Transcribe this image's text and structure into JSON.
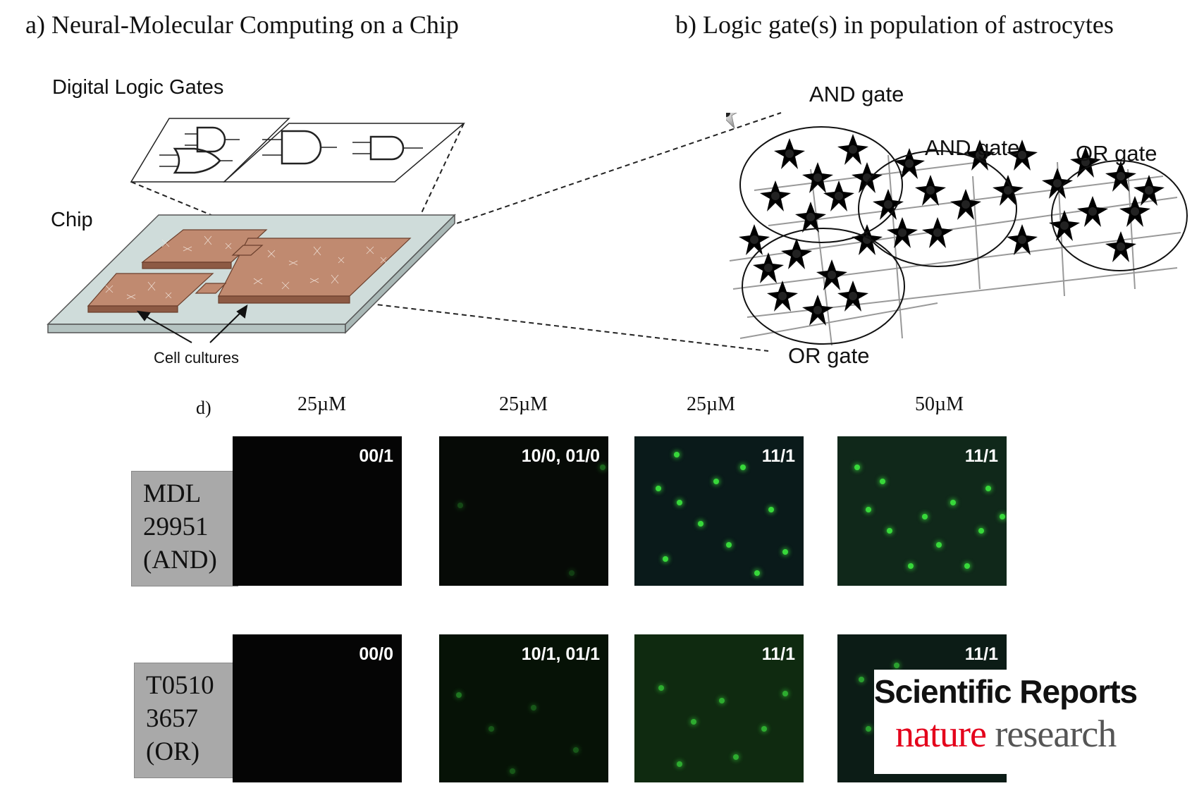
{
  "panel_a": {
    "title": "a) Neural-Molecular Computing on a Chip",
    "gates_label": "Digital Logic Gates",
    "chip_label": "Chip",
    "cultures_label": "Cell cultures"
  },
  "panel_b": {
    "title": "b) Logic gate(s) in population of astrocytes",
    "gate_labels": [
      "AND gate",
      "AND gate",
      "OR gate",
      "OR gate"
    ]
  },
  "panel_d": {
    "label": "d)",
    "concentrations": [
      "25µM",
      "25µM",
      "25µM",
      "50µM"
    ],
    "rows": [
      {
        "drug_lines": [
          "MDL",
          "29951",
          "(AND)"
        ],
        "codes": [
          "00/1",
          "10/0, 01/0",
          "11/1",
          "11/1"
        ],
        "brightness": [
          0,
          0.15,
          1,
          1
        ]
      },
      {
        "drug_lines": [
          "T0510",
          "3657",
          "(OR)"
        ],
        "codes": [
          "00/0",
          "10/1, 01/1",
          "11/1",
          "11/1"
        ],
        "brightness": [
          0,
          0.35,
          0.8,
          0.8
        ]
      }
    ]
  },
  "branding": {
    "journal": "Scientific Reports",
    "publisher_red": "nature",
    "publisher_grey": " research"
  },
  "colors": {
    "chip_plate": "#cfdcda",
    "culture": "#c08a70",
    "fluorescence": "#37d83a",
    "nature_red": "#e4001b",
    "tab_grey": "#a9a9a9"
  }
}
